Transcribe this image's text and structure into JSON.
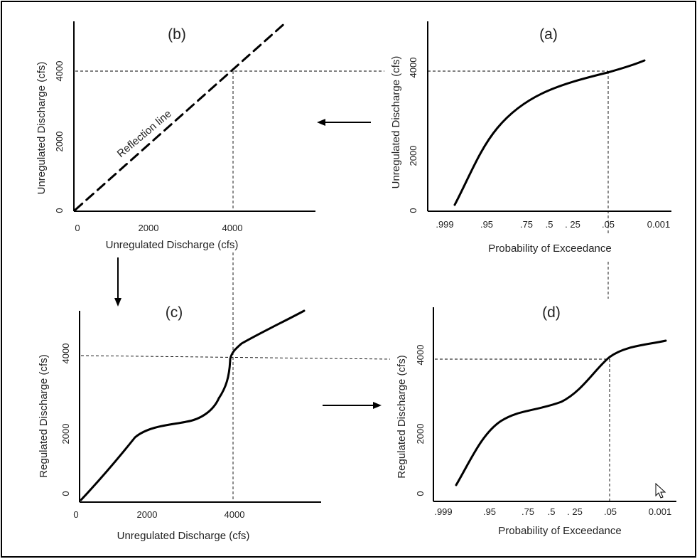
{
  "panels": {
    "a": {
      "label": "(a)",
      "ylabel": "Unregulated Discharge (cfs)",
      "xlabel": "Probability of Exceedance",
      "yticks": [
        "0",
        "2000",
        "4000"
      ],
      "xticks": [
        ".999",
        ".95",
        ".75",
        ".5",
        ". 25",
        ".05",
        "0.001"
      ]
    },
    "b": {
      "label": "(b)",
      "ylabel": "Unregulated Discharge (cfs)",
      "xlabel": "Unregulated Discharge (cfs)",
      "yticks": [
        "0",
        "2000",
        "4000"
      ],
      "xticks": [
        "0",
        "2000",
        "4000"
      ],
      "line_label": "Reflection line"
    },
    "c": {
      "label": "(c)",
      "ylabel": "Regulated Discharge (cfs)",
      "xlabel": "Unregulated Discharge (cfs)",
      "yticks": [
        "0",
        "2000",
        "4000"
      ],
      "xticks": [
        "0",
        "2000",
        "4000"
      ]
    },
    "d": {
      "label": "(d)",
      "ylabel": "Regulated Discharge (cfs)",
      "xlabel": "Probability of Exceedance",
      "yticks": [
        "0",
        "2000",
        "4000"
      ],
      "xticks": [
        ".999",
        ".95",
        ".75",
        ".5",
        ". 25",
        ".05",
        "0.001"
      ]
    }
  },
  "colors": {
    "ink": "#000000",
    "background": "#ffffff"
  },
  "icons": {
    "cursor": "mouse-pointer-icon"
  }
}
